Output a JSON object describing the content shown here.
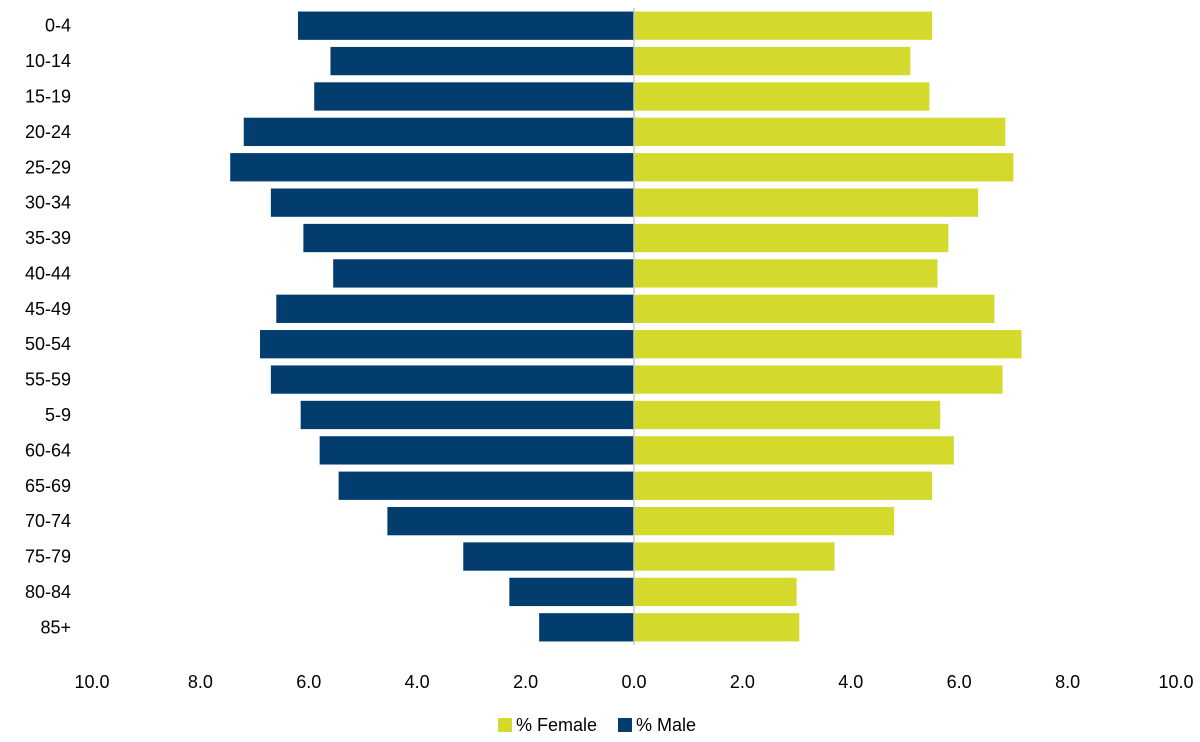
{
  "chart_data": {
    "type": "bar",
    "orientation": "horizontal",
    "title": "",
    "xlabel": "",
    "ylabel": "",
    "categories": [
      "0-4",
      "10-14",
      "15-19",
      "20-24",
      "25-29",
      "30-34",
      "35-39",
      "40-44",
      "45-49",
      "50-54",
      "55-59",
      "5-9",
      "60-64",
      "65-69",
      "70-74",
      "75-79",
      "80-84",
      "85+"
    ],
    "series": [
      {
        "name": "% Female",
        "color": "#d4da2c",
        "side": "right",
        "values": [
          5.5,
          5.1,
          5.45,
          6.85,
          7.0,
          6.35,
          5.8,
          5.6,
          6.65,
          7.15,
          6.8,
          5.65,
          5.9,
          5.5,
          4.8,
          3.7,
          3.0,
          3.05
        ]
      },
      {
        "name": "% Male",
        "color": "#033d6e",
        "side": "left",
        "values": [
          6.2,
          5.6,
          5.9,
          7.2,
          7.45,
          6.7,
          6.1,
          5.55,
          6.6,
          6.9,
          6.7,
          6.15,
          5.8,
          5.45,
          4.55,
          3.15,
          2.3,
          1.75
        ]
      }
    ],
    "xlim": [
      -10,
      10
    ],
    "x_tick_labels": [
      "10.0",
      "8.0",
      "6.0",
      "4.0",
      "2.0",
      "0.0",
      "2.0",
      "4.0",
      "6.0",
      "8.0",
      "10.0"
    ],
    "grid": false,
    "legend_position": "bottom"
  },
  "colors": {
    "female": "#d4da2c",
    "male": "#033d6e",
    "axis": "#c8c8c8"
  }
}
